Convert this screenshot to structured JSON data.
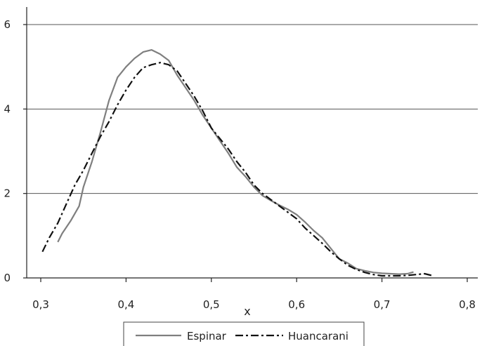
{
  "chart_data": {
    "type": "line",
    "xlabel": "x",
    "ylabel": "",
    "xlim": [
      0.3,
      0.8
    ],
    "ylim": [
      0,
      6
    ],
    "x_ticks": [
      0.3,
      0.4,
      0.5,
      0.6,
      0.7,
      0.8
    ],
    "x_tick_labels": [
      "0,3",
      "0,4",
      "0,5",
      "0,6",
      "0,7",
      "0,8"
    ],
    "y_ticks": [
      0,
      2,
      4,
      6
    ],
    "y_tick_labels": [
      "0",
      "2",
      "4",
      "6"
    ],
    "grid": "horizontal",
    "legend_position": "bottom",
    "series": [
      {
        "name": "Espinar",
        "color": "#7f7f7f",
        "style": "solid",
        "x": [
          0.32,
          0.325,
          0.335,
          0.345,
          0.35,
          0.36,
          0.37,
          0.38,
          0.39,
          0.4,
          0.41,
          0.42,
          0.43,
          0.44,
          0.45,
          0.46,
          0.47,
          0.48,
          0.49,
          0.5,
          0.51,
          0.52,
          0.53,
          0.54,
          0.55,
          0.56,
          0.57,
          0.58,
          0.59,
          0.6,
          0.61,
          0.62,
          0.63,
          0.64,
          0.65,
          0.66,
          0.67,
          0.68,
          0.69,
          0.7,
          0.71,
          0.72,
          0.73,
          0.737
        ],
        "values": [
          0.85,
          1.05,
          1.35,
          1.7,
          2.15,
          2.75,
          3.45,
          4.2,
          4.75,
          5.0,
          5.2,
          5.35,
          5.4,
          5.3,
          5.15,
          4.8,
          4.5,
          4.2,
          3.85,
          3.55,
          3.25,
          2.95,
          2.62,
          2.4,
          2.15,
          1.95,
          1.83,
          1.72,
          1.62,
          1.5,
          1.32,
          1.12,
          0.95,
          0.7,
          0.45,
          0.35,
          0.22,
          0.17,
          0.13,
          0.11,
          0.1,
          0.09,
          0.1,
          0.14
        ]
      },
      {
        "name": "Huancarani",
        "color": "#111111",
        "style": "dash-dot",
        "x": [
          0.302,
          0.31,
          0.32,
          0.33,
          0.34,
          0.35,
          0.36,
          0.37,
          0.38,
          0.39,
          0.4,
          0.41,
          0.42,
          0.43,
          0.44,
          0.45,
          0.46,
          0.47,
          0.48,
          0.49,
          0.5,
          0.51,
          0.52,
          0.53,
          0.54,
          0.55,
          0.56,
          0.57,
          0.58,
          0.59,
          0.6,
          0.61,
          0.62,
          0.63,
          0.64,
          0.65,
          0.66,
          0.67,
          0.68,
          0.69,
          0.7,
          0.71,
          0.72,
          0.73,
          0.74,
          0.75,
          0.76
        ],
        "values": [
          0.62,
          0.95,
          1.3,
          1.75,
          2.2,
          2.55,
          2.95,
          3.35,
          3.7,
          4.1,
          4.45,
          4.75,
          4.98,
          5.05,
          5.1,
          5.05,
          4.9,
          4.6,
          4.3,
          3.95,
          3.55,
          3.3,
          3.05,
          2.75,
          2.5,
          2.2,
          2.0,
          1.85,
          1.7,
          1.55,
          1.4,
          1.18,
          1.0,
          0.82,
          0.62,
          0.45,
          0.3,
          0.2,
          0.13,
          0.08,
          0.05,
          0.05,
          0.05,
          0.06,
          0.08,
          0.1,
          0.05
        ]
      }
    ]
  }
}
